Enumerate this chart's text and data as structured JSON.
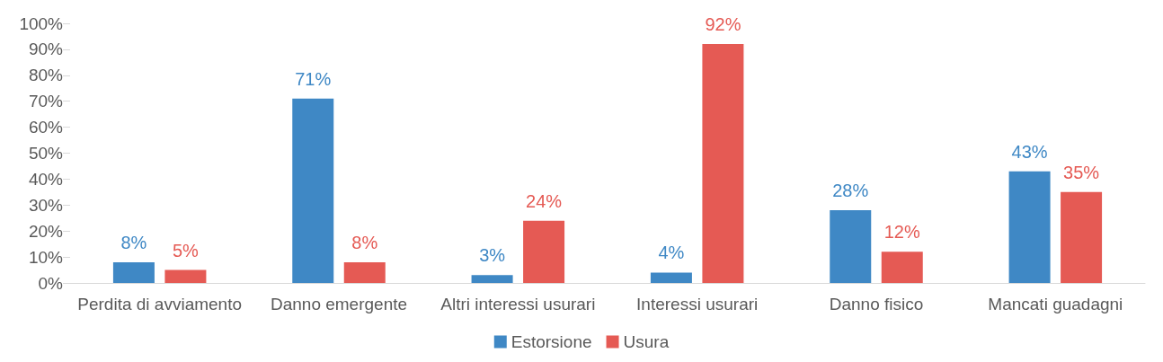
{
  "chart_data": {
    "type": "bar",
    "categories": [
      "Perdita di avviamento",
      "Danno emergente",
      "Altri interessi usurari",
      "Interessi usurari",
      "Danno fisico",
      "Mancati guadagni"
    ],
    "series": [
      {
        "name": "Estorsione",
        "color": "#3f88c5",
        "values": [
          8,
          71,
          3,
          4,
          28,
          43
        ],
        "value_labels": [
          "8%",
          "71%",
          "3%",
          "4%",
          "28%",
          "43%"
        ]
      },
      {
        "name": "Usura",
        "color": "#e55a54",
        "values": [
          5,
          8,
          24,
          92,
          12,
          35
        ],
        "value_labels": [
          "5%",
          "8%",
          "24%",
          "92%",
          "12%",
          "35%"
        ]
      }
    ],
    "ylim": [
      0,
      100
    ],
    "yticks": [
      {
        "value": 0,
        "label": "0%"
      },
      {
        "value": 10,
        "label": "10%"
      },
      {
        "value": 20,
        "label": "20%"
      },
      {
        "value": 30,
        "label": "30%"
      },
      {
        "value": 40,
        "label": "40%"
      },
      {
        "value": 50,
        "label": "50%"
      },
      {
        "value": 60,
        "label": "60%"
      },
      {
        "value": 70,
        "label": "70%"
      },
      {
        "value": 80,
        "label": "80%"
      },
      {
        "value": 90,
        "label": "90%"
      },
      {
        "value": 100,
        "label": "100%"
      }
    ],
    "grid": false,
    "legend": "bottom"
  }
}
